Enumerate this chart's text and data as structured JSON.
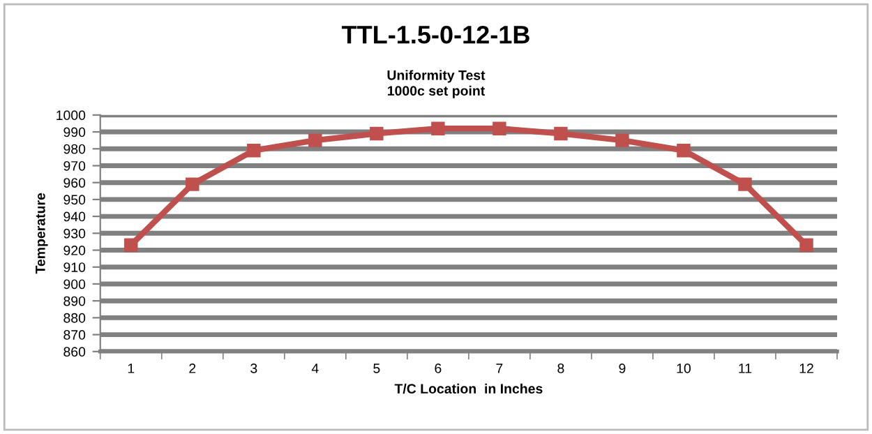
{
  "chart_data": {
    "type": "line",
    "title": "TTL-1.5-0-12-1B",
    "subtitle": "Uniformity Test\n1000c set point",
    "xlabel": "T/C Location  in Inches",
    "ylabel": "Temperature",
    "categories": [
      "1",
      "2",
      "3",
      "4",
      "5",
      "6",
      "7",
      "8",
      "9",
      "10",
      "11",
      "12"
    ],
    "series": [
      {
        "color": "#c0504d",
        "values": [
          923,
          959,
          979,
          985,
          989,
          992,
          992,
          989,
          985,
          979,
          959,
          923
        ]
      }
    ],
    "ylim": [
      860,
      1000
    ],
    "yticks": [
      860,
      870,
      880,
      890,
      900,
      910,
      920,
      930,
      940,
      950,
      960,
      970,
      980,
      990,
      1000
    ],
    "grid": "y",
    "legend": false,
    "marker": "square",
    "line_style": "solid"
  }
}
